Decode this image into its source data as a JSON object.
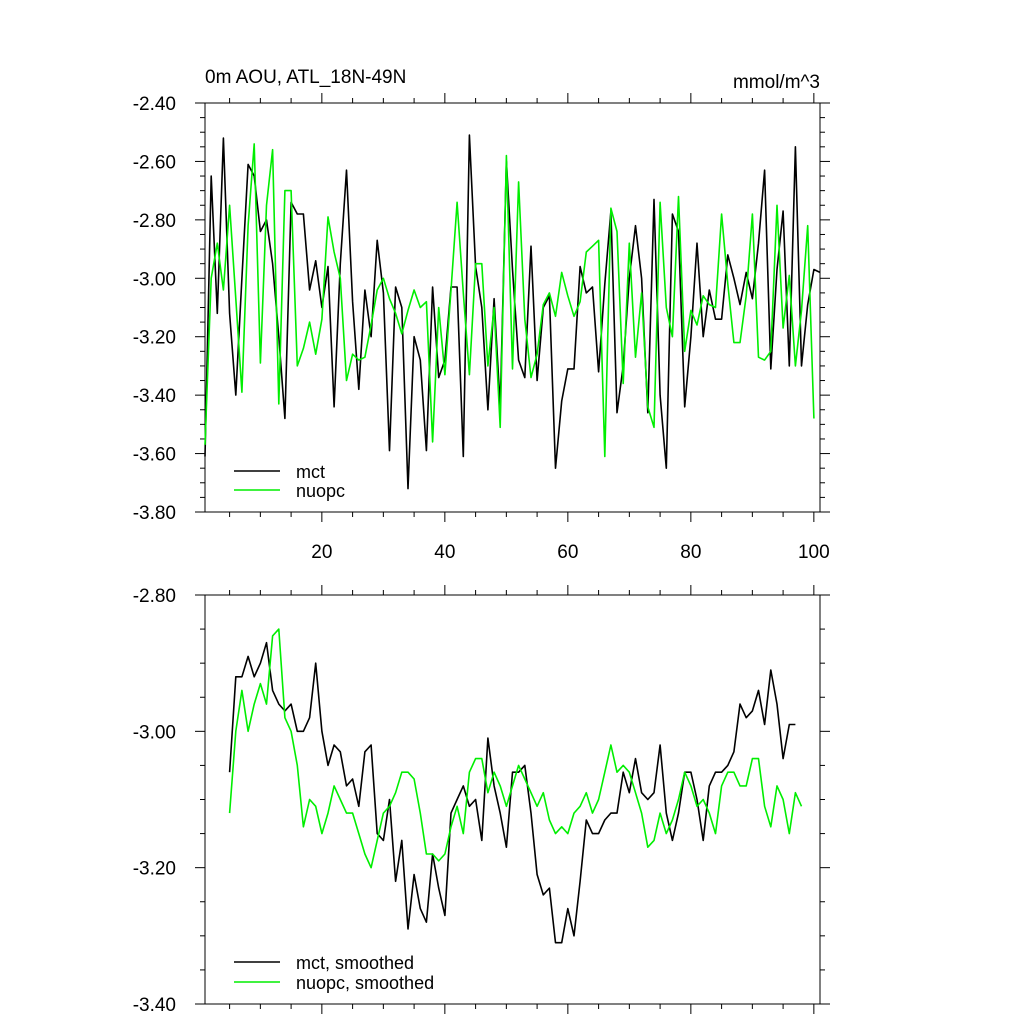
{
  "colors": {
    "mct": "#000000",
    "nuopc": "#00ee00"
  },
  "chart_data": [
    {
      "type": "line",
      "title": "0m AOU, ATL_18N-49N",
      "units": "mmol/m^3",
      "xlabel": "",
      "ylabel": "",
      "xlim": [
        1,
        101
      ],
      "ylim": [
        -3.8,
        -2.4
      ],
      "xticks": [
        20,
        40,
        60,
        80,
        100
      ],
      "yticks": [
        -3.8,
        -3.6,
        -3.4,
        -3.2,
        -3.0,
        -2.8,
        -2.6,
        -2.4
      ],
      "ytick_labels": [
        "-3.80",
        "-3.60",
        "-3.40",
        "-3.20",
        "-3.00",
        "-2.80",
        "-2.60",
        "-2.40"
      ],
      "legend": "bottom-left",
      "grid": false,
      "series": [
        {
          "name": "mct",
          "color": "#000000",
          "x_start": 1,
          "values": [
            -3.61,
            -2.65,
            -3.12,
            -2.52,
            -3.12,
            -3.4,
            -3.0,
            -2.61,
            -2.65,
            -2.84,
            -2.8,
            -2.95,
            -3.2,
            -3.48,
            -2.74,
            -2.78,
            -2.78,
            -3.04,
            -2.94,
            -3.1,
            -2.96,
            -3.44,
            -2.95,
            -2.63,
            -3.08,
            -3.38,
            -3.04,
            -3.2,
            -2.87,
            -3.05,
            -3.59,
            -3.03,
            -3.1,
            -3.72,
            -3.2,
            -3.28,
            -3.59,
            -3.03,
            -3.34,
            -3.28,
            -3.03,
            -3.03,
            -3.61,
            -2.51,
            -2.96,
            -3.1,
            -3.45,
            -3.07,
            -3.44,
            -2.6,
            -2.97,
            -3.28,
            -3.34,
            -2.89,
            -3.35,
            -3.1,
            -3.06,
            -3.65,
            -3.42,
            -3.31,
            -3.31,
            -2.96,
            -3.05,
            -3.03,
            -3.32,
            -3.02,
            -2.77,
            -3.46,
            -3.3,
            -3.0,
            -2.82,
            -3.0,
            -3.46,
            -2.73,
            -3.4,
            -3.65,
            -2.78,
            -2.84,
            -3.44,
            -3.2,
            -2.88,
            -3.2,
            -3.04,
            -3.14,
            -3.14,
            -2.92,
            -3.0,
            -3.09,
            -2.98,
            -3.07,
            -2.88,
            -2.63,
            -3.31,
            -2.97,
            -2.77,
            -3.3,
            -2.55,
            -3.3,
            -3.09,
            -2.97,
            -2.98
          ]
        },
        {
          "name": "nuopc",
          "color": "#00ee00",
          "x_start": 1,
          "values": [
            -3.57,
            -3.0,
            -2.88,
            -3.04,
            -2.75,
            -3.07,
            -3.39,
            -2.82,
            -2.54,
            -3.29,
            -2.75,
            -2.56,
            -3.43,
            -2.7,
            -2.7,
            -3.3,
            -3.24,
            -3.15,
            -3.26,
            -3.14,
            -2.79,
            -2.91,
            -3.0,
            -3.35,
            -3.26,
            -3.28,
            -3.27,
            -3.16,
            -3.04,
            -3.0,
            -3.07,
            -3.12,
            -3.19,
            -3.11,
            -3.04,
            -3.1,
            -3.08,
            -3.56,
            -3.1,
            -3.33,
            -3.04,
            -2.74,
            -3.05,
            -3.33,
            -2.95,
            -2.95,
            -3.3,
            -3.1,
            -3.51,
            -2.58,
            -3.31,
            -2.67,
            -3.14,
            -3.34,
            -3.26,
            -3.09,
            -3.05,
            -3.13,
            -2.98,
            -3.06,
            -3.13,
            -3.08,
            -2.91,
            -2.89,
            -2.87,
            -3.61,
            -2.76,
            -2.84,
            -3.36,
            -2.88,
            -3.27,
            -3.05,
            -3.44,
            -3.51,
            -2.74,
            -3.1,
            -3.2,
            -2.72,
            -3.25,
            -3.11,
            -3.16,
            -3.06,
            -3.09,
            -3.1,
            -2.78,
            -3.02,
            -3.22,
            -3.22,
            -3.06,
            -2.78,
            -3.27,
            -3.28,
            -3.25,
            -2.75,
            -3.17,
            -2.99,
            -3.3,
            -3.11,
            -2.82,
            -3.48
          ]
        }
      ]
    },
    {
      "type": "line",
      "title": "",
      "xlabel": "",
      "ylabel": "",
      "xlim": [
        1,
        101
      ],
      "ylim": [
        -3.4,
        -2.8
      ],
      "xticks": [
        20,
        40,
        60,
        80,
        100
      ],
      "yticks": [
        -3.4,
        -3.2,
        -3.0,
        -2.8
      ],
      "ytick_labels": [
        "-3.40",
        "-3.20",
        "-3.00",
        "-2.80"
      ],
      "legend": "bottom-left",
      "grid": false,
      "series": [
        {
          "name": "mct, smoothed",
          "color": "#000000",
          "x_start": 5,
          "values": [
            -3.06,
            -2.92,
            -2.92,
            -2.89,
            -2.92,
            -2.9,
            -2.87,
            -2.94,
            -2.96,
            -2.97,
            -2.96,
            -3.0,
            -3.0,
            -2.98,
            -2.9,
            -3.0,
            -3.05,
            -3.02,
            -3.03,
            -3.08,
            -3.07,
            -3.11,
            -3.03,
            -3.02,
            -3.15,
            -3.16,
            -3.1,
            -3.22,
            -3.16,
            -3.29,
            -3.21,
            -3.26,
            -3.28,
            -3.18,
            -3.23,
            -3.27,
            -3.12,
            -3.1,
            -3.08,
            -3.11,
            -3.1,
            -3.16,
            -3.01,
            -3.08,
            -3.12,
            -3.17,
            -3.06,
            -3.06,
            -3.05,
            -3.12,
            -3.21,
            -3.24,
            -3.23,
            -3.31,
            -3.31,
            -3.26,
            -3.3,
            -3.22,
            -3.13,
            -3.15,
            -3.15,
            -3.13,
            -3.12,
            -3.12,
            -3.06,
            -3.09,
            -3.04,
            -3.09,
            -3.1,
            -3.09,
            -3.02,
            -3.12,
            -3.16,
            -3.12,
            -3.06,
            -3.06,
            -3.1,
            -3.16,
            -3.08,
            -3.06,
            -3.06,
            -3.05,
            -3.03,
            -2.96,
            -2.98,
            -2.97,
            -2.94,
            -2.99,
            -2.91,
            -2.96,
            -3.04,
            -2.99,
            -2.99
          ]
        },
        {
          "name": "nuopc, smoothed",
          "color": "#00ee00",
          "x_start": 5,
          "values": [
            -3.12,
            -3.0,
            -2.94,
            -3.0,
            -2.96,
            -2.93,
            -2.96,
            -2.86,
            -2.85,
            -2.98,
            -3.0,
            -3.05,
            -3.14,
            -3.1,
            -3.11,
            -3.15,
            -3.12,
            -3.08,
            -3.1,
            -3.12,
            -3.12,
            -3.15,
            -3.18,
            -3.2,
            -3.16,
            -3.12,
            -3.11,
            -3.09,
            -3.06,
            -3.06,
            -3.07,
            -3.12,
            -3.18,
            -3.18,
            -3.19,
            -3.18,
            -3.14,
            -3.11,
            -3.15,
            -3.06,
            -3.04,
            -3.04,
            -3.09,
            -3.06,
            -3.08,
            -3.11,
            -3.08,
            -3.05,
            -3.07,
            -3.09,
            -3.11,
            -3.09,
            -3.13,
            -3.15,
            -3.14,
            -3.15,
            -3.12,
            -3.11,
            -3.09,
            -3.12,
            -3.1,
            -3.06,
            -3.02,
            -3.06,
            -3.05,
            -3.06,
            -3.09,
            -3.12,
            -3.17,
            -3.16,
            -3.12,
            -3.15,
            -3.13,
            -3.1,
            -3.06,
            -3.08,
            -3.11,
            -3.1,
            -3.12,
            -3.15,
            -3.08,
            -3.06,
            -3.06,
            -3.08,
            -3.08,
            -3.04,
            -3.04,
            -3.11,
            -3.14,
            -3.08,
            -3.1,
            -3.15,
            -3.09,
            -3.11
          ]
        }
      ]
    }
  ]
}
